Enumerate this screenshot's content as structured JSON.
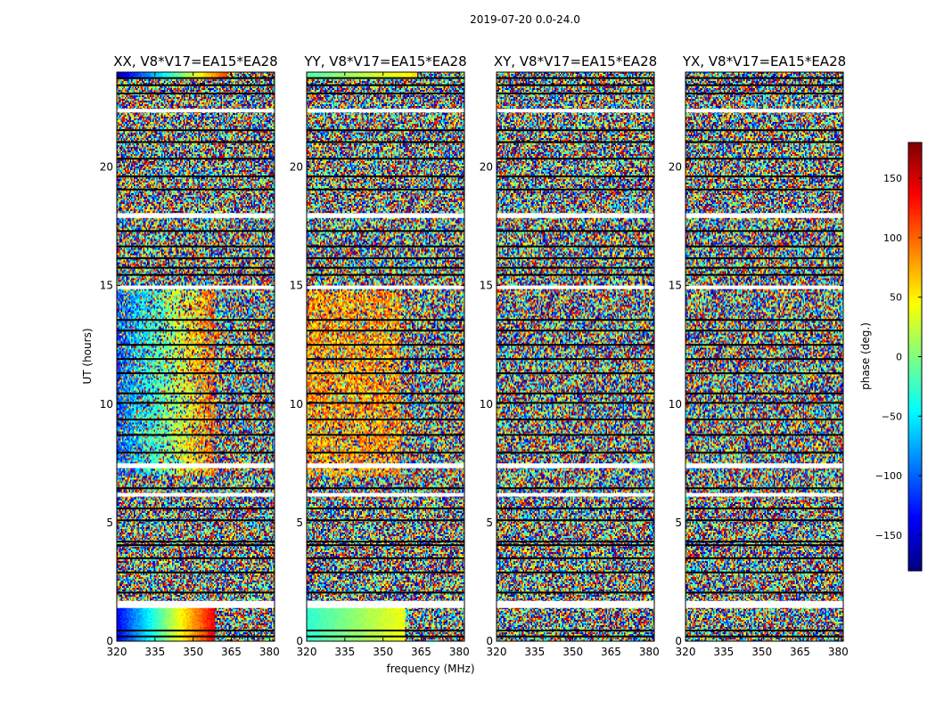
{
  "chart_data": {
    "type": "heatmap",
    "suptitle": "2019-07-20 0.0-24.0",
    "ylabel": "UT (hours)",
    "xlabel": "frequency (MHz)",
    "xlim": [
      320,
      382
    ],
    "ylim": [
      0,
      24
    ],
    "xticks": [
      320,
      335,
      350,
      365,
      380
    ],
    "yticks": [
      0,
      5,
      10,
      15,
      20
    ],
    "colorbar": {
      "label": "phase (deg.)",
      "range": [
        -180,
        180
      ],
      "ticks": [
        150,
        100,
        50,
        0,
        -50,
        -100,
        -150
      ],
      "tick_labels": [
        "150",
        "100",
        "50",
        "0",
        "−50",
        "−100",
        "−150"
      ]
    },
    "panels": [
      {
        "title": "XX, V8*V17=EA15*EA28",
        "pattern": "xx"
      },
      {
        "title": "YY, V8*V17=EA15*EA28",
        "pattern": "yy"
      },
      {
        "title": "XY, V8*V17=EA15*EA28",
        "pattern": "noise"
      },
      {
        "title": "YX, V8*V17=EA15*EA28",
        "pattern": "noise"
      }
    ],
    "blank_intervals_ut": [
      [
        1.4,
        1.7
      ],
      [
        6.1,
        6.25
      ],
      [
        7.3,
        7.5
      ],
      [
        14.85,
        15.0
      ],
      [
        17.85,
        18.05
      ],
      [
        22.3,
        22.45
      ]
    ],
    "flagged_lines_ut": [
      0.2,
      0.45,
      2.05,
      2.9,
      3.5,
      4.05,
      4.2,
      5.1,
      5.6,
      6.45,
      7.95,
      8.7,
      9.35,
      10.05,
      10.45,
      11.3,
      11.9,
      12.5,
      13.1,
      13.55,
      15.45,
      15.75,
      16.15,
      16.65,
      17.3,
      19.05,
      19.6,
      20.35,
      21.05,
      21.55,
      23.1,
      23.45,
      23.75
    ],
    "colormap": "jet"
  }
}
